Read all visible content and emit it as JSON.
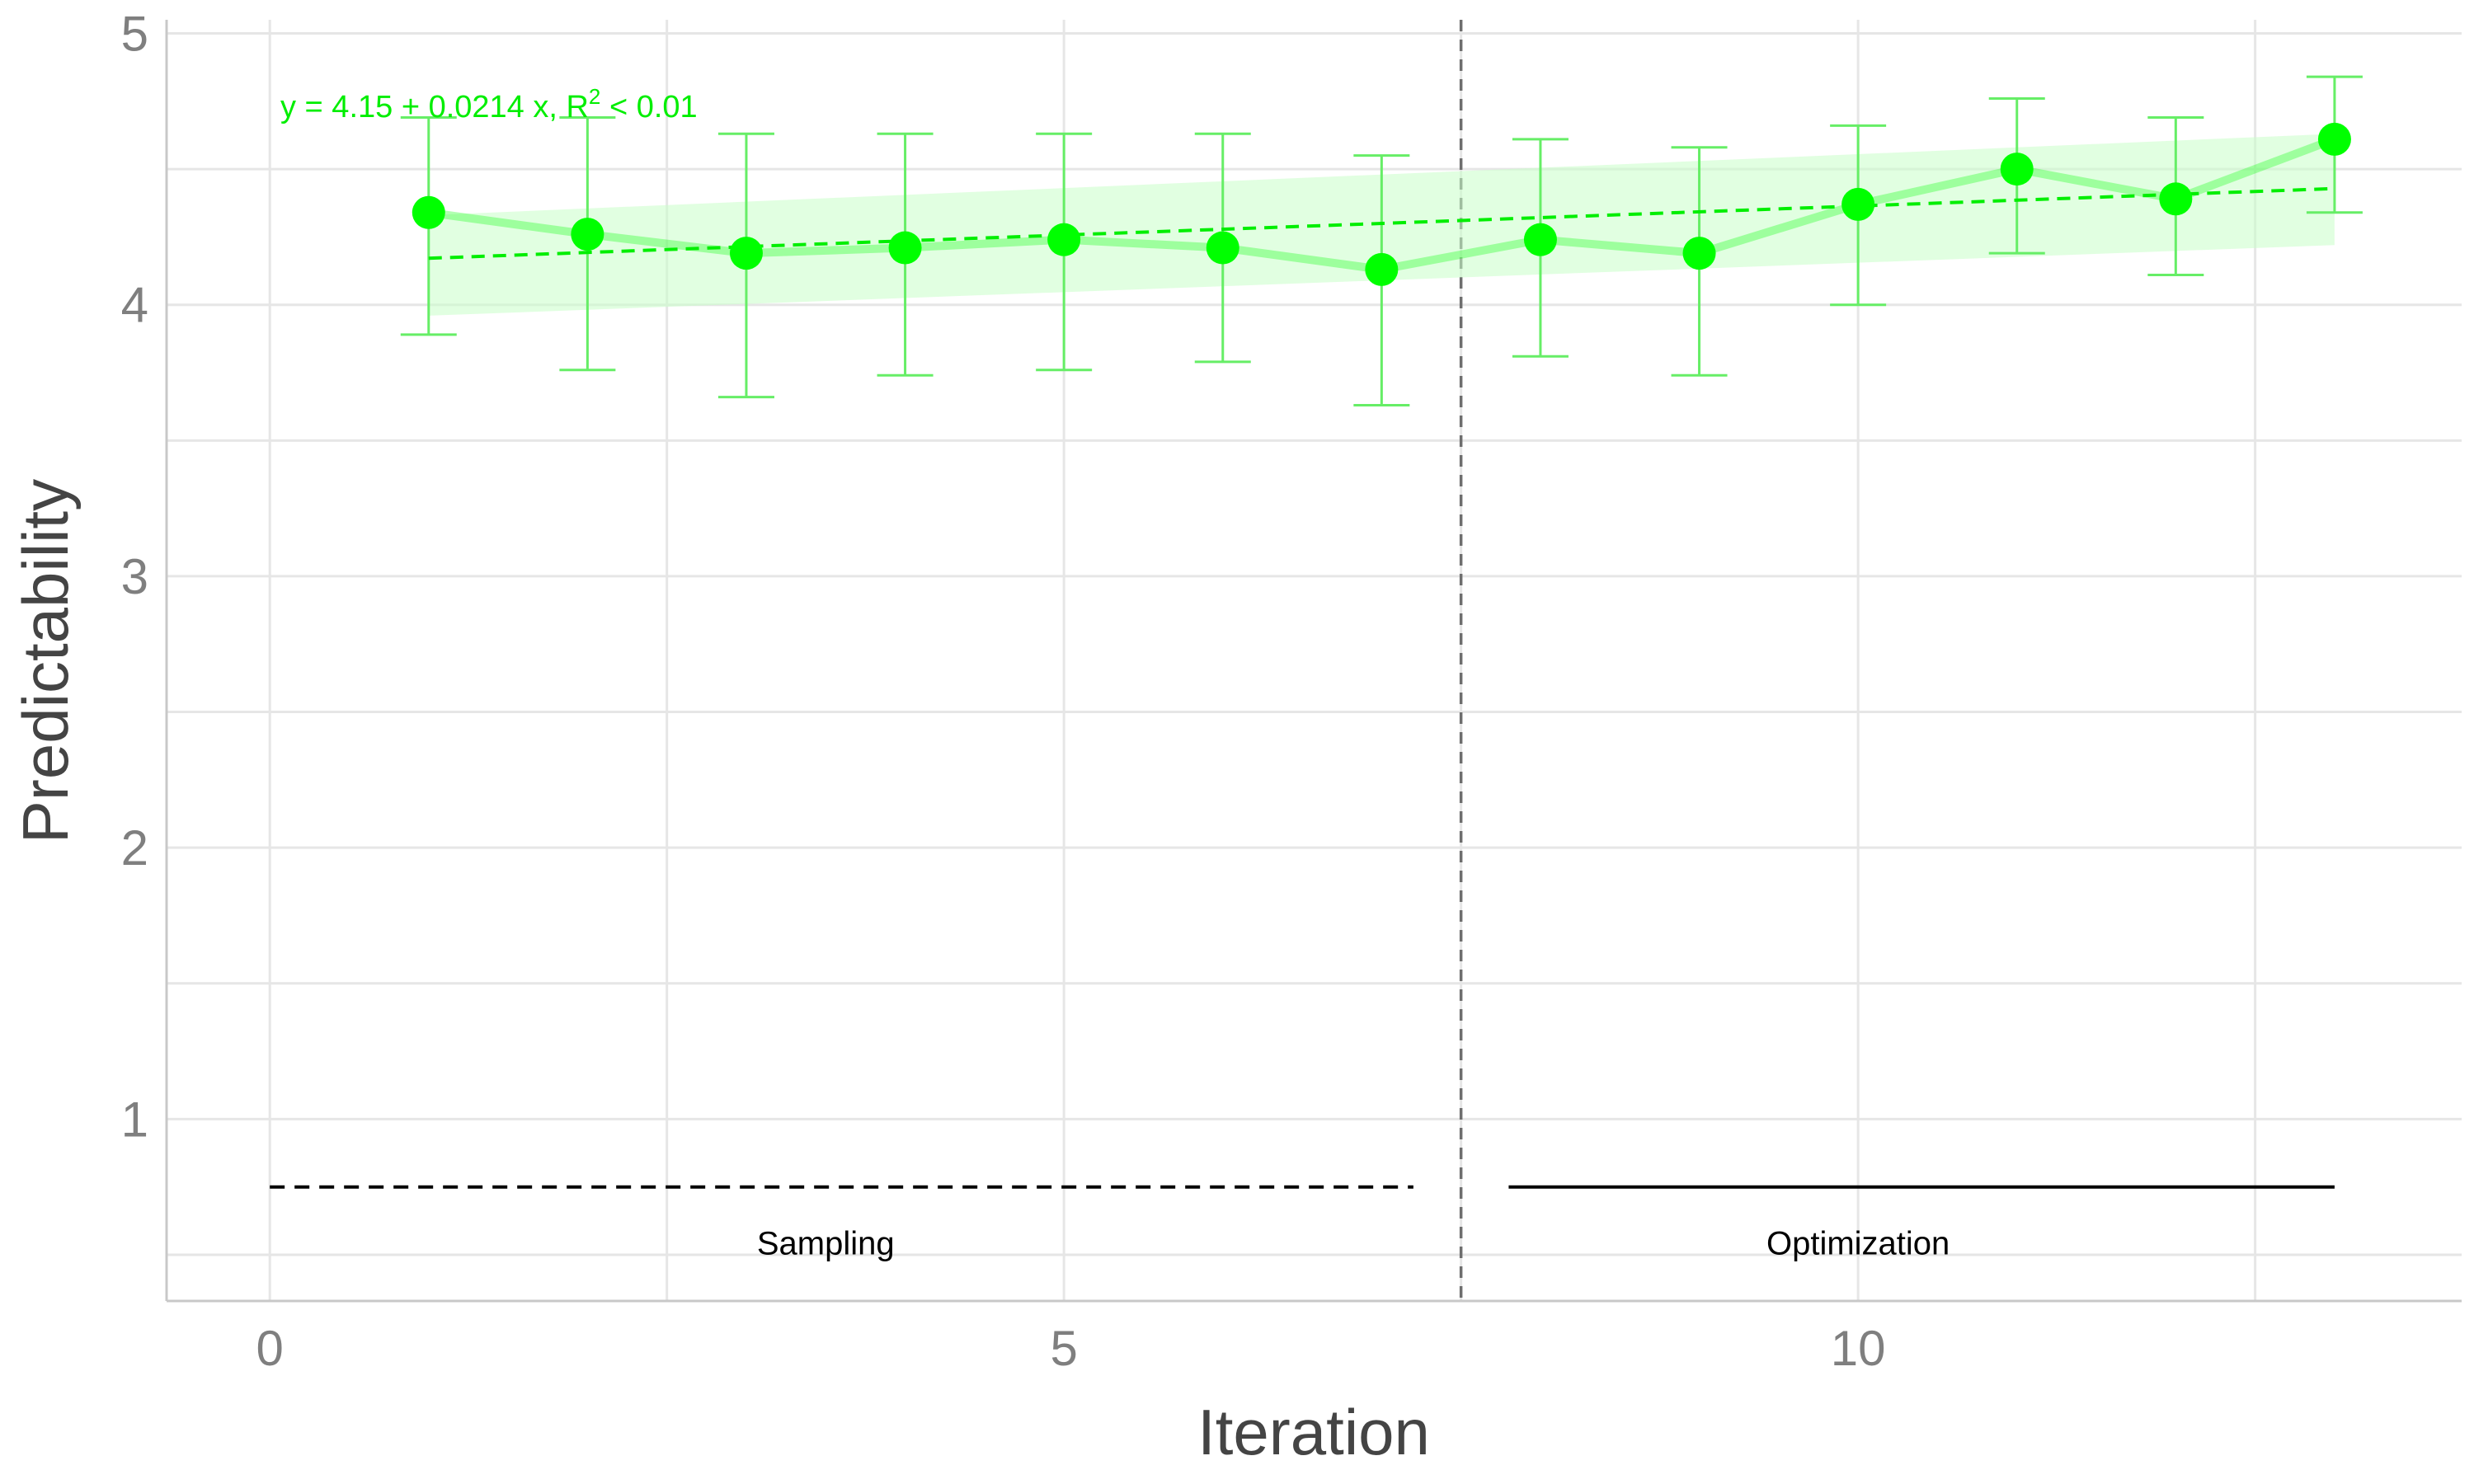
{
  "chart_data": {
    "type": "line",
    "title": "",
    "xlabel": "Iteration",
    "ylabel": "Predictability",
    "xlim": [
      -0.65,
      13.8
    ],
    "ylim": [
      0.33,
      5.05
    ],
    "x_ticks": [
      "0",
      "5",
      "10"
    ],
    "y_ticks": [
      "1",
      "2",
      "3",
      "4",
      "5"
    ],
    "grid": true,
    "series": [
      {
        "x": [
          1,
          2,
          3,
          4,
          5,
          6,
          7,
          8,
          9,
          10,
          11,
          12,
          13
        ],
        "y": [
          4.34,
          4.26,
          4.19,
          4.21,
          4.24,
          4.21,
          4.13,
          4.24,
          4.19,
          4.37,
          4.5,
          4.39,
          4.61
        ],
        "lower": [
          3.89,
          3.76,
          3.66,
          3.74,
          3.76,
          3.79,
          3.63,
          3.81,
          3.74,
          4.0,
          4.19,
          4.11,
          4.34
        ],
        "upper": [
          4.69,
          4.69,
          4.63,
          4.63,
          4.63,
          4.63,
          4.55,
          4.61,
          4.58,
          4.66,
          4.76,
          4.69,
          4.84
        ],
        "color": "#00ff00"
      }
    ],
    "regression": {
      "intercept": 4.15,
      "slope": 0.0214,
      "x_range": [
        1,
        13
      ],
      "band_start": [
        3.96,
        4.33
      ],
      "band_end": [
        4.22,
        4.63
      ],
      "color": "#00ee00",
      "equation": "y = 4.15 + 0.0214 x, R",
      "r_exponent": "2",
      "r_value": " < 0.01"
    },
    "phase_divider_x": 7.5,
    "phases": [
      {
        "label": "Sampling",
        "x_start": 0,
        "x_end": 7.2,
        "y": 0.75,
        "dashed": true,
        "label_x": 3.5
      },
      {
        "label": "Optimization",
        "x_start": 7.8,
        "x_end": 13,
        "y": 0.75,
        "dashed": false,
        "label_x": 10
      }
    ]
  }
}
